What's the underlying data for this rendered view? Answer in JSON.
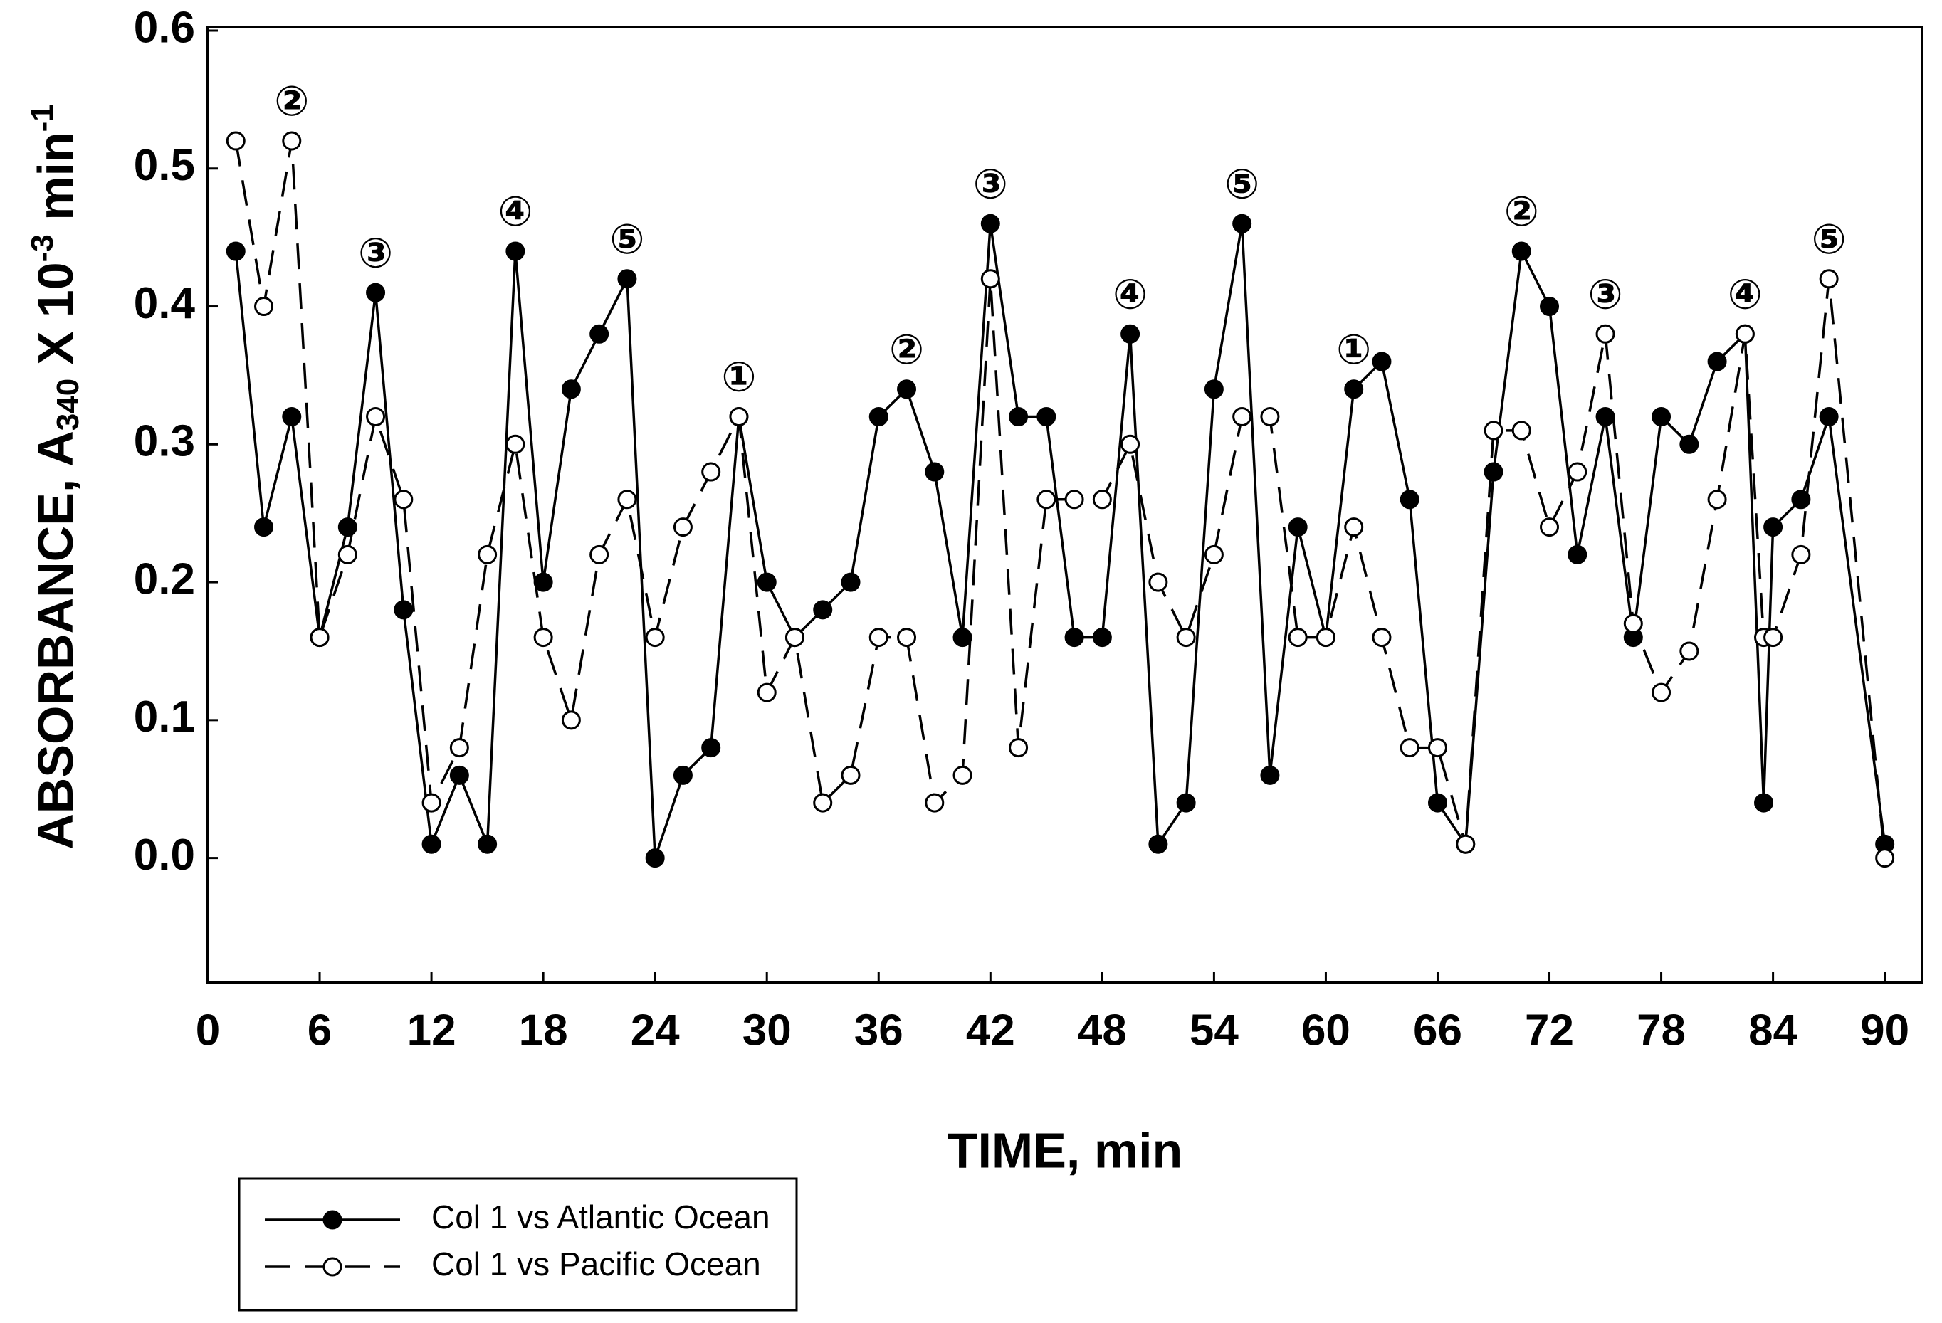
{
  "chart_data": {
    "type": "line",
    "x_label": "TIME, min",
    "y_label_parts": [
      "ABSORBANCE, A",
      "340",
      " X 10",
      "-3",
      " min",
      "-1"
    ],
    "x": [
      1.5,
      3,
      4.5,
      6,
      7.5,
      9,
      10.5,
      12,
      13.5,
      15,
      16.5,
      18,
      19.5,
      21,
      22.5,
      24,
      25.5,
      27,
      28.5,
      30,
      31.5,
      33,
      34.5,
      36,
      37.5,
      39,
      40.5,
      42,
      43.5,
      45,
      46.5,
      48,
      49.5,
      51,
      52.5,
      54,
      55.5,
      57,
      58.5,
      60,
      61.5,
      63,
      64.5,
      66,
      67.5,
      69,
      70.5,
      72,
      73.5,
      75,
      76.5,
      78,
      79.5,
      81,
      82.5,
      83.5,
      84,
      85.5,
      87,
      90
    ],
    "series": [
      {
        "name": "Col 1 vs Atlantic Ocean",
        "color": "#000000",
        "marker": "filled",
        "dash": false,
        "values": [
          0.44,
          0.24,
          0.32,
          0.16,
          0.24,
          0.41,
          0.18,
          0.01,
          0.06,
          0.01,
          0.44,
          0.2,
          0.34,
          0.38,
          0.42,
          0.0,
          0.06,
          0.08,
          0.32,
          0.2,
          0.16,
          0.18,
          0.2,
          0.32,
          0.34,
          0.28,
          0.16,
          0.46,
          0.32,
          0.32,
          0.16,
          0.16,
          0.38,
          0.01,
          0.04,
          0.34,
          0.46,
          0.06,
          0.24,
          0.16,
          0.34,
          0.36,
          0.26,
          0.04,
          0.01,
          0.28,
          0.44,
          0.4,
          0.22,
          0.32,
          0.16,
          0.32,
          0.3,
          0.36,
          0.38,
          0.04,
          0.24,
          0.26,
          0.32,
          0.01
        ]
      },
      {
        "name": "Col 1 vs Pacific Ocean",
        "color": "#000000",
        "marker": "open",
        "dash": true,
        "values": [
          0.52,
          0.4,
          0.52,
          0.16,
          0.22,
          0.32,
          0.26,
          0.04,
          0.08,
          0.22,
          0.3,
          0.16,
          0.1,
          0.22,
          0.26,
          0.16,
          0.24,
          0.28,
          0.32,
          0.12,
          0.16,
          0.04,
          0.06,
          0.16,
          0.16,
          0.04,
          0.06,
          0.42,
          0.08,
          0.26,
          0.26,
          0.26,
          0.3,
          0.2,
          0.16,
          0.22,
          0.32,
          0.32,
          0.16,
          0.16,
          0.24,
          0.16,
          0.08,
          0.08,
          0.01,
          0.31,
          0.31,
          0.24,
          0.28,
          0.38,
          0.17,
          0.12,
          0.15,
          0.26,
          0.38,
          0.16,
          0.16,
          0.22,
          0.42,
          0.0
        ]
      }
    ],
    "annotations": [
      {
        "text": "②",
        "x": 4.5
      },
      {
        "text": "③",
        "x": 9
      },
      {
        "text": "④",
        "x": 16.5
      },
      {
        "text": "⑤",
        "x": 22.5
      },
      {
        "text": "①",
        "x": 28.5
      },
      {
        "text": "②",
        "x": 37.5
      },
      {
        "text": "③",
        "x": 42
      },
      {
        "text": "④",
        "x": 49.5
      },
      {
        "text": "⑤",
        "x": 55.5
      },
      {
        "text": "①",
        "x": 61.5
      },
      {
        "text": "②",
        "x": 70.5
      },
      {
        "text": "③",
        "x": 75
      },
      {
        "text": "④",
        "x": 82.5
      },
      {
        "text": "⑤",
        "x": 87
      }
    ],
    "xlim": [
      0,
      92
    ],
    "xticks": [
      0,
      6,
      12,
      18,
      24,
      30,
      36,
      42,
      48,
      54,
      60,
      66,
      72,
      78,
      84,
      90
    ],
    "ylim": [
      -0.09,
      0.6
    ],
    "yticks": [
      {
        "value": 0,
        "label": "0.0"
      },
      0.1,
      0.2,
      0.3,
      0.4,
      0.5,
      0.6
    ]
  }
}
